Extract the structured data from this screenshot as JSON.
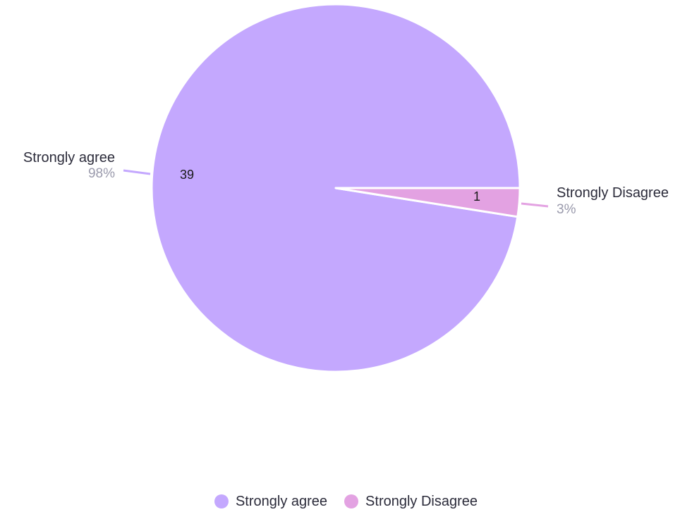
{
  "chart_data": {
    "type": "pie",
    "slices": [
      {
        "label": "Strongly agree",
        "value": 39,
        "percent_label": "98%",
        "color": "#c4a8fe"
      },
      {
        "label": "Strongly Disagree",
        "value": 1,
        "percent_label": "3%",
        "color": "#e3a2e2"
      }
    ],
    "legend": {
      "position": "bottom"
    }
  }
}
